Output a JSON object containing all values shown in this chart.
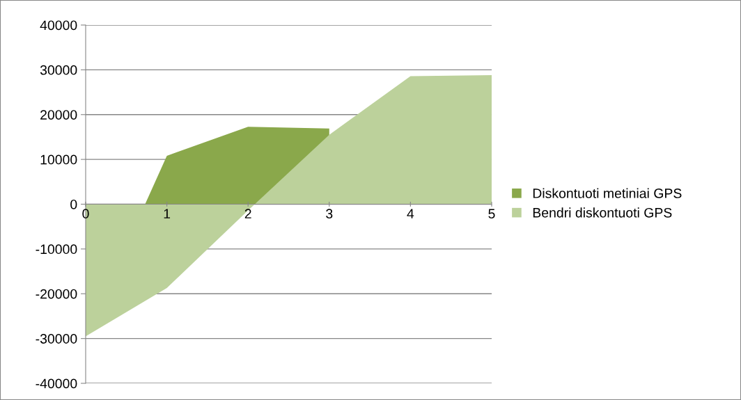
{
  "chart_data": {
    "type": "area",
    "categories": [
      "0",
      "1",
      "2",
      "3",
      "4",
      "5"
    ],
    "series": [
      {
        "name": "Diskontuoti metiniai GPS",
        "color": "#8aa84b",
        "values": [
          -29500,
          10800,
          17300,
          16900,
          null,
          null
        ]
      },
      {
        "name": "Bendri diskontuoti GPS",
        "color": "#bcd19b",
        "values": [
          -29500,
          -18700,
          -1400,
          15500,
          28600,
          28800
        ]
      }
    ],
    "ylim": [
      -40000,
      40000
    ],
    "yticks": [
      -40000,
      -30000,
      -20000,
      -10000,
      0,
      10000,
      20000,
      30000,
      40000
    ],
    "grid": "y",
    "legend": "right"
  }
}
